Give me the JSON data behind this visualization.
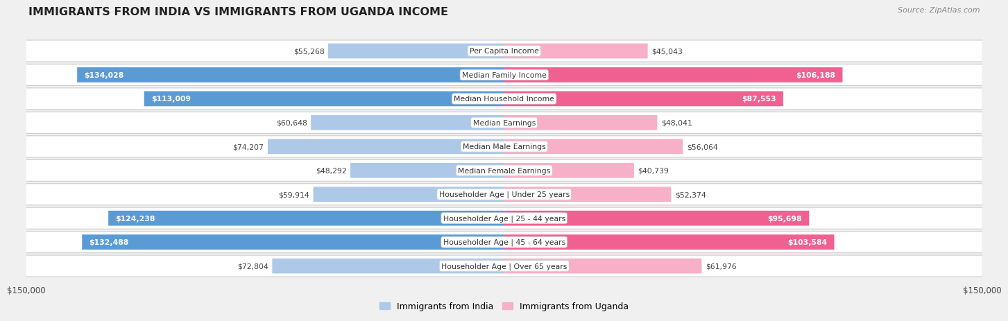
{
  "title": "IMMIGRANTS FROM INDIA VS IMMIGRANTS FROM UGANDA INCOME",
  "source": "Source: ZipAtlas.com",
  "categories": [
    "Per Capita Income",
    "Median Family Income",
    "Median Household Income",
    "Median Earnings",
    "Median Male Earnings",
    "Median Female Earnings",
    "Householder Age | Under 25 years",
    "Householder Age | 25 - 44 years",
    "Householder Age | 45 - 64 years",
    "Householder Age | Over 65 years"
  ],
  "india_values": [
    55268,
    134028,
    113009,
    60648,
    74207,
    48292,
    59914,
    124238,
    132488,
    72804
  ],
  "uganda_values": [
    45043,
    106188,
    87553,
    48041,
    56064,
    40739,
    52374,
    95698,
    103584,
    61976
  ],
  "india_labels": [
    "$55,268",
    "$134,028",
    "$113,009",
    "$60,648",
    "$74,207",
    "$48,292",
    "$59,914",
    "$124,238",
    "$132,488",
    "$72,804"
  ],
  "uganda_labels": [
    "$45,043",
    "$106,188",
    "$87,553",
    "$48,041",
    "$56,064",
    "$40,739",
    "$52,374",
    "$95,698",
    "$103,584",
    "$61,976"
  ],
  "india_color_light": "#aec9e8",
  "india_color_dark": "#5b9bd5",
  "uganda_color_light": "#f7b0c8",
  "uganda_color_dark": "#f06090",
  "india_threshold": 80000,
  "uganda_threshold": 70000,
  "max_value": 150000,
  "x_tick_labels": [
    "$150,000",
    "$150,000"
  ],
  "legend_india": "Immigrants from India",
  "legend_uganda": "Immigrants from Uganda",
  "background_color": "#f0f0f0",
  "row_bg": "#ffffff",
  "row_border": "#cccccc"
}
